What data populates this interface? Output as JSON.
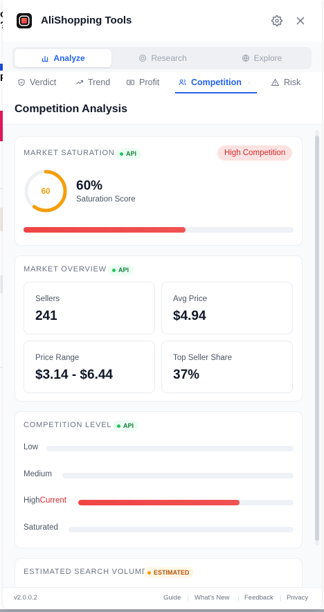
{
  "header": {
    "title": "AliShopping Tools"
  },
  "mode_tabs": [
    {
      "label": "Analyze",
      "icon": "bar-chart-icon",
      "active": true
    },
    {
      "label": "Research",
      "icon": "target-icon",
      "active": false
    },
    {
      "label": "Explore",
      "icon": "globe-icon",
      "active": false
    }
  ],
  "sub_tabs": [
    {
      "label": "Verdict",
      "icon": "shield-check-icon"
    },
    {
      "label": "Trend",
      "icon": "trend-up-icon"
    },
    {
      "label": "Profit",
      "icon": "banknote-icon"
    },
    {
      "label": "Competition",
      "icon": "users-icon",
      "active": true
    },
    {
      "label": "Risk",
      "icon": "alert-triangle-icon"
    }
  ],
  "section_title": "Competition Analysis",
  "saturation": {
    "label": "MARKET SATURATION",
    "badge": "API",
    "level_badge": "High Competition",
    "score_ring": "60",
    "score": "60%",
    "score_caption": "Saturation Score",
    "bar_fraction": 0.6
  },
  "overview": {
    "label": "MARKET OVERVIEW",
    "badge": "API",
    "stats": [
      {
        "label": "Sellers",
        "value": "241"
      },
      {
        "label": "Avg Price",
        "value": "$4.94"
      },
      {
        "label": "Price Range",
        "value": "$3.14 - $6.44"
      },
      {
        "label": "Top Seller Share",
        "value": "37%"
      }
    ]
  },
  "competition_level": {
    "label": "COMPETITION LEVEL",
    "badge": "API",
    "levels": [
      {
        "label": "Low",
        "current_tag": "",
        "fill": 0
      },
      {
        "label": "Medium",
        "current_tag": "",
        "fill": 0
      },
      {
        "label": "High",
        "current_tag": "Current",
        "fill": 0.75
      },
      {
        "label": "Saturated",
        "current_tag": "",
        "fill": 0
      }
    ]
  },
  "search_volume": {
    "label": "ESTIMATED SEARCH VOLUME",
    "badge": "ESTIMATED"
  },
  "footer": {
    "version": "v2.0.0.2",
    "links": [
      "Guide",
      "What's New",
      "Feedback",
      "Privacy"
    ]
  },
  "colors": {
    "accent": "#2563eb",
    "danger": "#ef4444",
    "warning": "#f59e0b",
    "success": "#22c55e"
  }
}
